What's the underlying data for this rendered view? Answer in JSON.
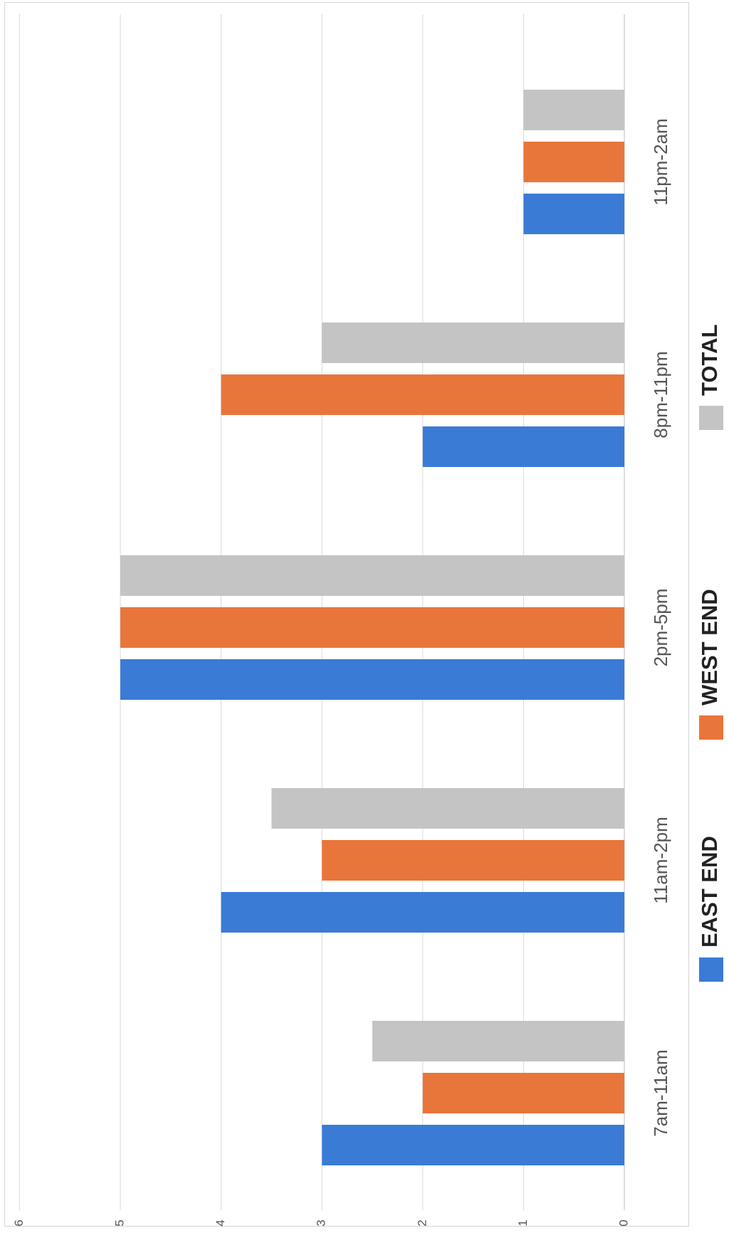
{
  "chart_data": {
    "type": "bar",
    "orientation": "rotated-90-clockwise",
    "categories": [
      "7am-11am",
      "11am-2pm",
      "2pm-5pm",
      "8pm-11pm",
      "11pm-2am"
    ],
    "series": [
      {
        "name": "EAST END",
        "color": "#3a7bd5",
        "values": [
          3,
          4,
          5,
          2,
          1
        ]
      },
      {
        "name": "WEST END",
        "color": "#e8763a",
        "values": [
          2,
          3,
          5,
          4,
          1
        ]
      },
      {
        "name": "TOTAL",
        "color": "#c4c4c4",
        "values": [
          2.5,
          3.5,
          5,
          3,
          1
        ]
      }
    ],
    "yticks": [
      0,
      1,
      2,
      3,
      4,
      5,
      6
    ],
    "ylim": [
      0,
      6
    ],
    "grid": true,
    "legend_position": "bottom"
  }
}
